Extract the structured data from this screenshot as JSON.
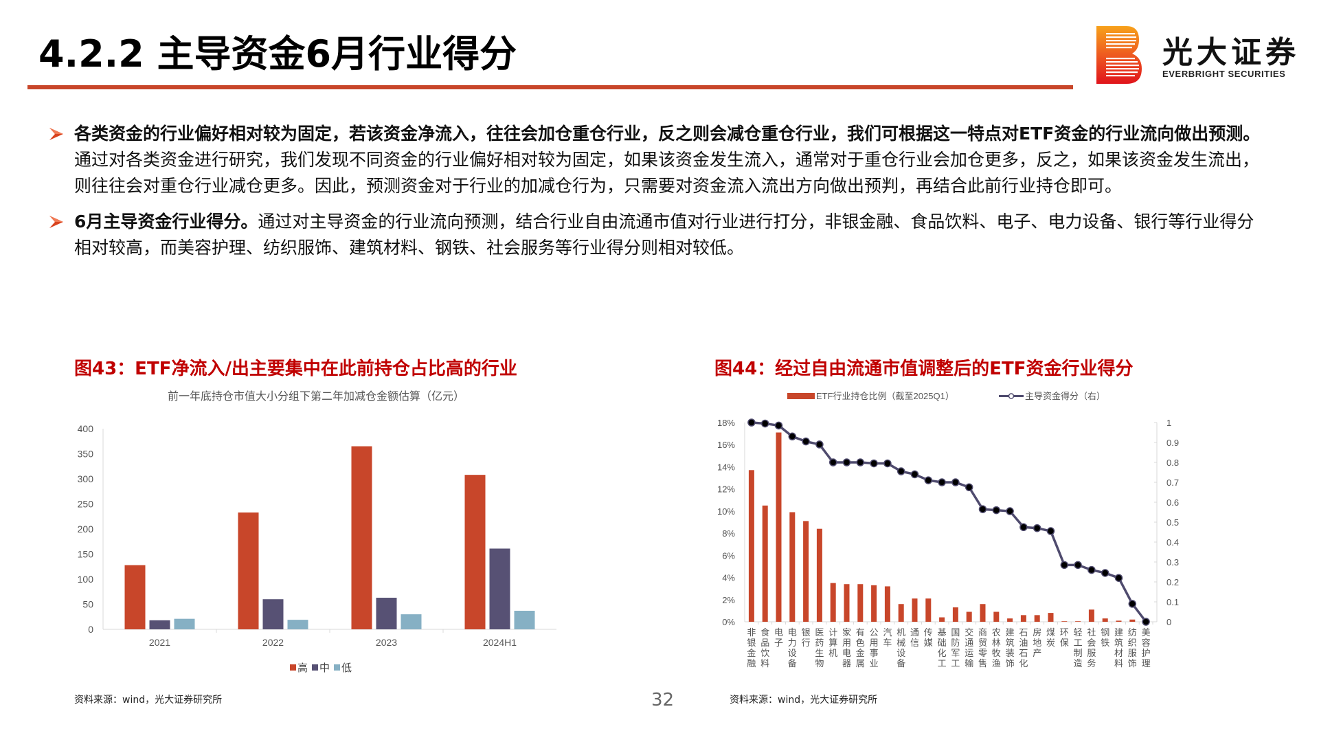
{
  "header": {
    "title": "4.2.2 主导资金6月行业得分",
    "logo_cn": "光大证券",
    "logo_en": "EVERBRIGHT SECURITIES",
    "accent_color": "#c8462a"
  },
  "bullets": [
    {
      "bold": "各类资金的行业偏好相对较为固定，若该资金净流入，往往会加仓重仓行业，反之则会减仓重仓行业，我们可根据这一特点对ETF资金的行业流向做出预测。",
      "text": "通过对各类资金进行研究，我们发现不同资金的行业偏好相对较为固定，如果该资金发生流入，通常对于重仓行业会加仓更多，反之，如果该资金发生流出，则往往会对重仓行业减仓更多。因此，预测资金对于行业的加减仓行为，只需要对资金流入流出方向做出预判，再结合此前行业持仓即可。"
    },
    {
      "bold": "6月主导资金行业得分。",
      "text": "通过对主导资金的行业流向预测，结合行业自由流通市值对行业进行打分，非银金融、食品饮料、电子、电力设备、银行等行业得分相对较高，而美容护理、纺织服饰、建筑材料、钢铁、社会服务等行业得分则相对较低。"
    }
  ],
  "figures": {
    "left": {
      "title": "图43：ETF净流入/出主要集中在此前持仓占比高的行业",
      "source": "资料来源：wind，光大证券研究所"
    },
    "right": {
      "title": "图44：经过自由流通市值调整后的ETF资金行业得分",
      "source": "资料来源：wind，光大证券研究所"
    }
  },
  "page_number": "32",
  "chart_data": [
    {
      "type": "bar",
      "title": "前一年底持仓市值大小分组下第二年加减仓金额估算（亿元）",
      "categories": [
        "2021",
        "2022",
        "2023",
        "2024H1"
      ],
      "series": [
        {
          "name": "高",
          "color": "#c8462a",
          "values": [
            128,
            233,
            365,
            308
          ]
        },
        {
          "name": "中",
          "color": "#575174",
          "values": [
            18,
            60,
            63,
            161
          ]
        },
        {
          "name": "低",
          "color": "#86b0c4",
          "values": [
            21,
            19,
            30,
            37
          ]
        }
      ],
      "xlabel": "",
      "ylabel": "",
      "ylim": [
        0,
        400
      ],
      "yticks": [
        0,
        50,
        100,
        150,
        200,
        250,
        300,
        350,
        400
      ],
      "grid": false,
      "legend_position": "bottom"
    },
    {
      "type": "bar+line",
      "title": "",
      "categories": [
        "非银金融",
        "食品饮料",
        "电子",
        "电力设备",
        "银行",
        "医药生物",
        "计算机",
        "家用电器",
        "有色金属",
        "公用事业",
        "汽车",
        "机械设备",
        "通信",
        "传媒",
        "基础化工",
        "国防军工",
        "交通运输",
        "商贸零售",
        "农林牧渔",
        "建筑装饰",
        "石油石化",
        "房地产",
        "煤炭",
        "环保",
        "轻工制造",
        "社会服务",
        "钢铁",
        "建筑材料",
        "纺织服饰",
        "美容护理"
      ],
      "series": [
        {
          "name": "ETF行业持仓比例（截至2025Q1）",
          "type": "bar",
          "axis": "left",
          "color": "#c8462a",
          "values": [
            13.7,
            10.5,
            17.1,
            9.9,
            9.1,
            8.4,
            3.5,
            3.4,
            3.4,
            3.3,
            3.2,
            1.6,
            2.1,
            2.1,
            0.4,
            1.3,
            0.9,
            1.6,
            0.9,
            0.3,
            0.6,
            0.6,
            0.8,
            0.05,
            0.05,
            1.1,
            0.3,
            0.1,
            0.2,
            0.0
          ]
        },
        {
          "name": "主导资金得分（右）",
          "type": "line",
          "axis": "right",
          "color": "#4f4b6e",
          "values": [
            1.0,
            0.995,
            0.985,
            0.93,
            0.905,
            0.89,
            0.8,
            0.8,
            0.8,
            0.795,
            0.795,
            0.755,
            0.74,
            0.71,
            0.7,
            0.7,
            0.675,
            0.565,
            0.56,
            0.555,
            0.475,
            0.47,
            0.455,
            0.285,
            0.285,
            0.26,
            0.245,
            0.22,
            0.09,
            0.0
          ]
        }
      ],
      "ylim_left": [
        0,
        18
      ],
      "yticks_left": [
        "0%",
        "2%",
        "4%",
        "6%",
        "8%",
        "10%",
        "12%",
        "14%",
        "16%",
        "18%"
      ],
      "ylim_right": [
        0,
        1
      ],
      "yticks_right": [
        "0",
        "0.1",
        "0.2",
        "0.3",
        "0.4",
        "0.5",
        "0.6",
        "0.7",
        "0.8",
        "0.9",
        "1"
      ],
      "grid": false,
      "legend_position": "top"
    }
  ]
}
